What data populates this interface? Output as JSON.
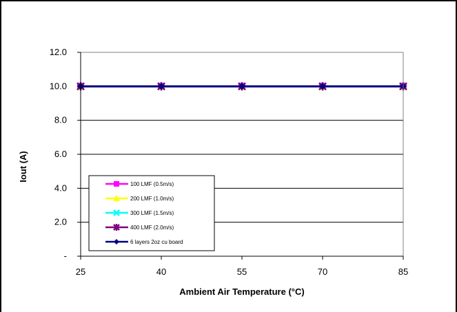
{
  "chart_data": {
    "type": "line",
    "title": "",
    "xlabel": "Ambient Air Temperature (°C)",
    "ylabel": "Iout (A)",
    "x": [
      25,
      40,
      55,
      70,
      85
    ],
    "x_tick_labels": [
      "25",
      "40",
      "55",
      "70",
      "85"
    ],
    "ylim": [
      0,
      12
    ],
    "y_ticks": [
      0,
      2,
      4,
      6,
      8,
      10,
      12
    ],
    "y_tick_labels": [
      "-",
      "2.0",
      "4.0",
      "6.0",
      "8.0",
      "10.0",
      "12.0"
    ],
    "grid": "horizontal",
    "legend_position": "bottom-left",
    "series": [
      {
        "name": "100 LMF (0.5m/s)",
        "values": [
          10,
          10,
          10,
          10,
          10
        ],
        "color": "#ff00ff",
        "marker": "square"
      },
      {
        "name": "200 LMF (1.0m/s)",
        "values": [
          10,
          10,
          10,
          10,
          10
        ],
        "color": "#ffff00",
        "marker": "triangle"
      },
      {
        "name": "300 LMF (1.5m/s)",
        "values": [
          10,
          10,
          10,
          10,
          10
        ],
        "color": "#00ffff",
        "marker": "x"
      },
      {
        "name": "400 LMF (2.0m/s)",
        "values": [
          10,
          10,
          10,
          10,
          10
        ],
        "color": "#800080",
        "marker": "star"
      },
      {
        "name": "6 layers 2oz cu board",
        "values": [
          10,
          10,
          10,
          10,
          10
        ],
        "color": "#000080",
        "marker": "diamond"
      }
    ]
  }
}
